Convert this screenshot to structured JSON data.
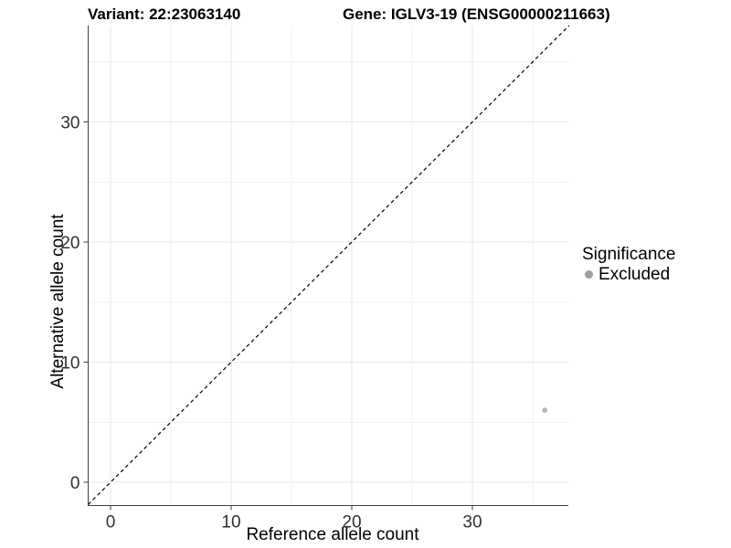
{
  "titles": {
    "variant": "Variant: 22:23063140",
    "gene": "Gene: IGLV3-19 (ENSG00000211663)"
  },
  "chart_data": {
    "type": "scatter",
    "title_left": "Variant: 22:23063140",
    "title_right": "Gene: IGLV3-19 (ENSG00000211663)",
    "xlabel": "Reference allele count",
    "ylabel": "Alternative allele count",
    "x_ticks": [
      0,
      10,
      20,
      30
    ],
    "y_ticks": [
      0,
      10,
      20,
      30
    ],
    "x_minor_ticks": [
      5,
      15,
      25,
      35
    ],
    "y_minor_ticks": [
      5,
      15,
      25,
      35
    ],
    "xlim": [
      -1.9,
      38
    ],
    "ylim": [
      -2.1,
      38
    ],
    "grid": true,
    "points": [
      {
        "x": 36,
        "y": 6,
        "series": "Excluded"
      }
    ],
    "reference_line": {
      "type": "identity",
      "slope": 1,
      "intercept": 0,
      "style": "dashed",
      "color": "#000000"
    },
    "legend": {
      "position": "right",
      "title": "Significance",
      "items": [
        {
          "label": "Excluded",
          "color": "#9e9e9e"
        }
      ]
    },
    "colors": {
      "excluded_point": "#b5b5b5",
      "axis_line": "#404040",
      "tick_label": "#303030",
      "grid_major": "#e7e7e7",
      "grid_minor": "#f2f2f2"
    }
  }
}
